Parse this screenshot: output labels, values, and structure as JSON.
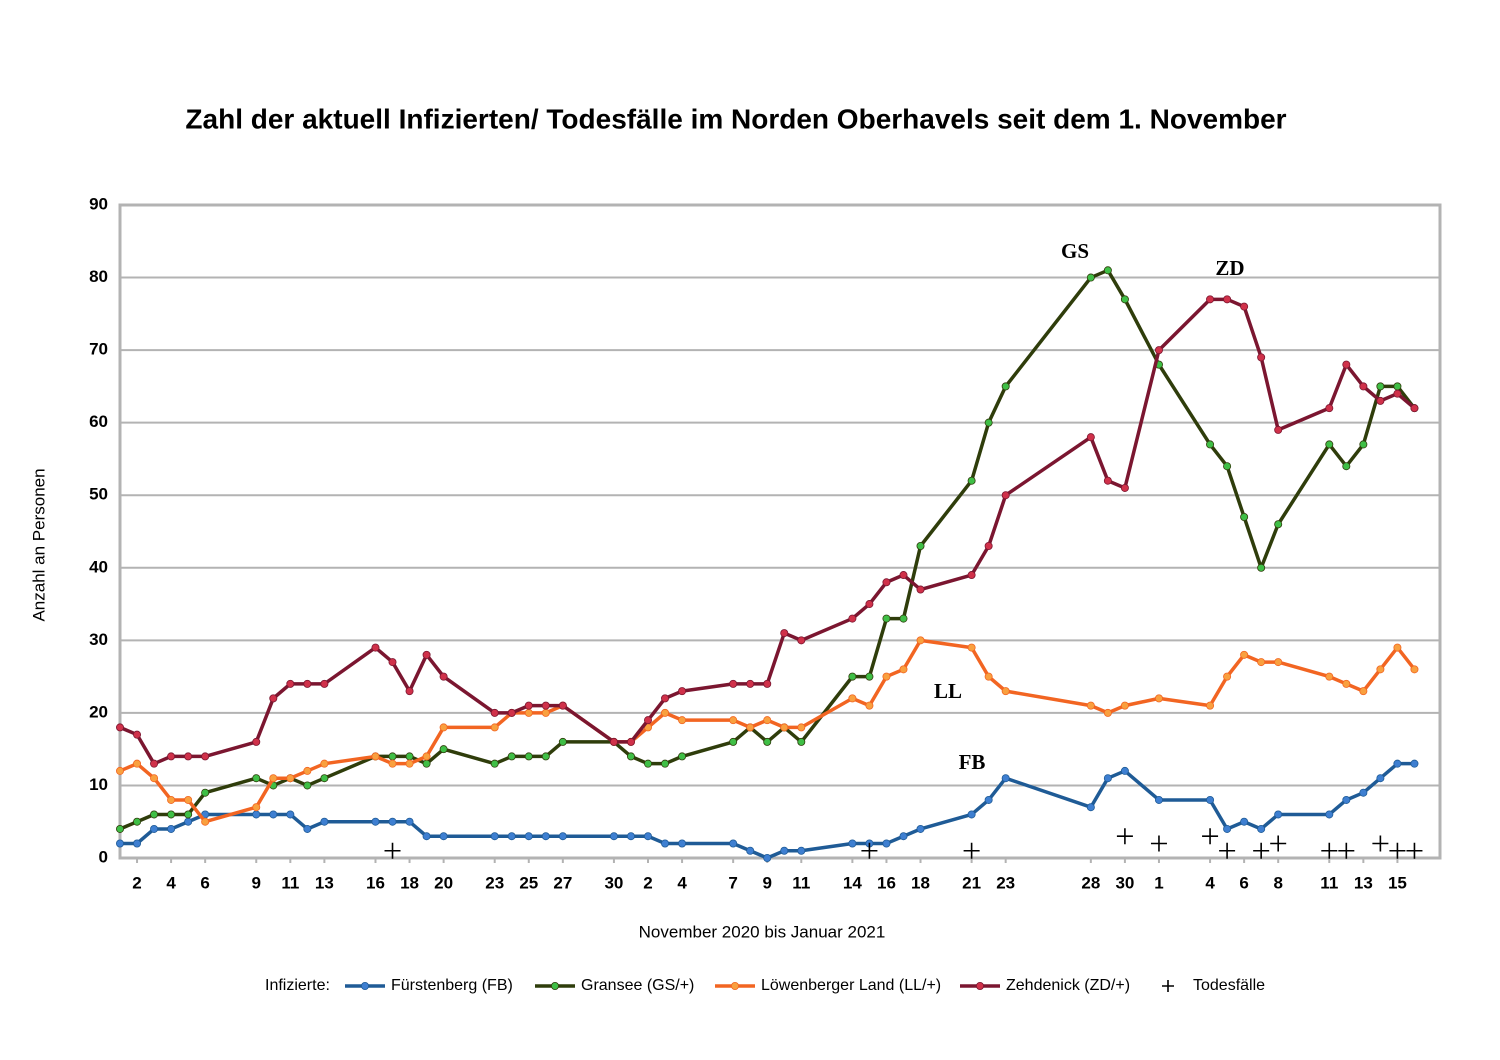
{
  "chart_data": {
    "type": "line",
    "title": "Zahl der aktuell Infizierten/ Todesfälle im Norden Oberhavels seit dem 1. November",
    "xlabel": "November 2020 bis Januar 2021",
    "ylabel": "Anzahl an Personen",
    "legend_title": "Infizierte:",
    "x": [
      1,
      2,
      3,
      4,
      5,
      6,
      9,
      10,
      11,
      12,
      13,
      16,
      17,
      18,
      19,
      20,
      23,
      24,
      25,
      26,
      27,
      30,
      31,
      32,
      33,
      34,
      37,
      38,
      39,
      40,
      41,
      44,
      45,
      46,
      47,
      48,
      51,
      52,
      53,
      58,
      59,
      60,
      62,
      65,
      66,
      67,
      68,
      69,
      72,
      73,
      74,
      75,
      76,
      77
    ],
    "xlim": [
      1,
      78.5
    ],
    "xticks": [
      {
        "value": 2,
        "label": "2"
      },
      {
        "value": 4,
        "label": "4"
      },
      {
        "value": 6,
        "label": "6"
      },
      {
        "value": 9,
        "label": "9"
      },
      {
        "value": 11,
        "label": "11"
      },
      {
        "value": 13,
        "label": "13"
      },
      {
        "value": 16,
        "label": "16"
      },
      {
        "value": 18,
        "label": "18"
      },
      {
        "value": 20,
        "label": "20"
      },
      {
        "value": 23,
        "label": "23"
      },
      {
        "value": 25,
        "label": "25"
      },
      {
        "value": 27,
        "label": "27"
      },
      {
        "value": 30,
        "label": "30"
      },
      {
        "value": 32,
        "label": "2"
      },
      {
        "value": 34,
        "label": "4"
      },
      {
        "value": 37,
        "label": "7"
      },
      {
        "value": 39,
        "label": "9"
      },
      {
        "value": 41,
        "label": "11"
      },
      {
        "value": 44,
        "label": "14"
      },
      {
        "value": 46,
        "label": "16"
      },
      {
        "value": 48,
        "label": "18"
      },
      {
        "value": 51,
        "label": "21"
      },
      {
        "value": 53,
        "label": "23"
      },
      {
        "value": 58,
        "label": "28"
      },
      {
        "value": 60,
        "label": "30"
      },
      {
        "value": 62,
        "label": "1"
      },
      {
        "value": 65,
        "label": "4"
      },
      {
        "value": 67,
        "label": "6"
      },
      {
        "value": 69,
        "label": "8"
      },
      {
        "value": 72,
        "label": "11"
      },
      {
        "value": 74,
        "label": "13"
      },
      {
        "value": 76,
        "label": "15"
      }
    ],
    "ylim": [
      0,
      90
    ],
    "yticks": [
      0,
      10,
      20,
      30,
      40,
      50,
      60,
      70,
      80,
      90
    ],
    "grid": true,
    "series": [
      {
        "name": "Fürstenberg (FB)",
        "color": "#1f5b96",
        "marker_color": "#3e7fd1",
        "values": [
          2,
          2,
          4,
          4,
          5,
          6,
          6,
          6,
          6,
          4,
          5,
          5,
          5,
          5,
          3,
          3,
          3,
          3,
          3,
          3,
          3,
          3,
          3,
          3,
          2,
          2,
          2,
          1,
          0,
          1,
          1,
          2,
          2,
          2,
          3,
          4,
          6,
          8,
          11,
          7,
          11,
          12,
          8,
          8,
          4,
          5,
          4,
          6,
          6,
          8,
          9,
          11,
          13,
          13
        ]
      },
      {
        "name": "Gransee (GS/+)",
        "color": "#2f3d0b",
        "marker_color": "#3fbf46",
        "values": [
          4,
          5,
          6,
          6,
          6,
          9,
          11,
          10,
          11,
          10,
          11,
          14,
          14,
          14,
          13,
          15,
          13,
          14,
          14,
          14,
          16,
          16,
          14,
          13,
          13,
          14,
          16,
          18,
          16,
          18,
          16,
          25,
          25,
          33,
          33,
          43,
          52,
          60,
          65,
          80,
          81,
          77,
          68,
          57,
          54,
          47,
          40,
          46,
          57,
          54,
          57,
          65,
          65,
          62
        ]
      },
      {
        "name": "Löwenberger Land (LL/+)",
        "color": "#f26522",
        "marker_color": "#f9a03f",
        "values": [
          12,
          13,
          11,
          8,
          8,
          5,
          7,
          11,
          11,
          12,
          13,
          14,
          13,
          13,
          14,
          18,
          18,
          20,
          20,
          20,
          21,
          16,
          16,
          18,
          20,
          19,
          19,
          18,
          19,
          18,
          18,
          22,
          21,
          25,
          26,
          30,
          29,
          25,
          23,
          21,
          20,
          21,
          22,
          21,
          25,
          28,
          27,
          27,
          25,
          24,
          23,
          26,
          29,
          26
        ]
      },
      {
        "name": "Zehdenick (ZD/+)",
        "color": "#7b1630",
        "marker_color": "#d0314a",
        "values": [
          18,
          17,
          13,
          14,
          14,
          14,
          16,
          22,
          24,
          24,
          24,
          29,
          27,
          23,
          28,
          25,
          20,
          20,
          21,
          21,
          21,
          16,
          16,
          19,
          22,
          23,
          24,
          24,
          24,
          31,
          30,
          33,
          35,
          38,
          39,
          37,
          39,
          43,
          50,
          58,
          52,
          51,
          70,
          77,
          77,
          76,
          69,
          59,
          62,
          68,
          65,
          63,
          64,
          62
        ]
      },
      {
        "name": "Todesfälle",
        "color": "#000000",
        "marker": "plus",
        "x": [
          17,
          45,
          51,
          60,
          62,
          65,
          66,
          68,
          69,
          72,
          73,
          75,
          76,
          77
        ],
        "values": [
          1,
          1,
          1,
          3,
          2,
          3,
          1,
          1,
          2,
          1,
          1,
          2,
          1,
          1
        ]
      }
    ],
    "annotations": [
      {
        "text": "GS",
        "color": "#5a9a2a"
      },
      {
        "text": "ZD",
        "color": "#7b1630"
      },
      {
        "text": "LL",
        "color": "#e8692e"
      },
      {
        "text": "FB",
        "color": "#1f5b86"
      }
    ]
  }
}
